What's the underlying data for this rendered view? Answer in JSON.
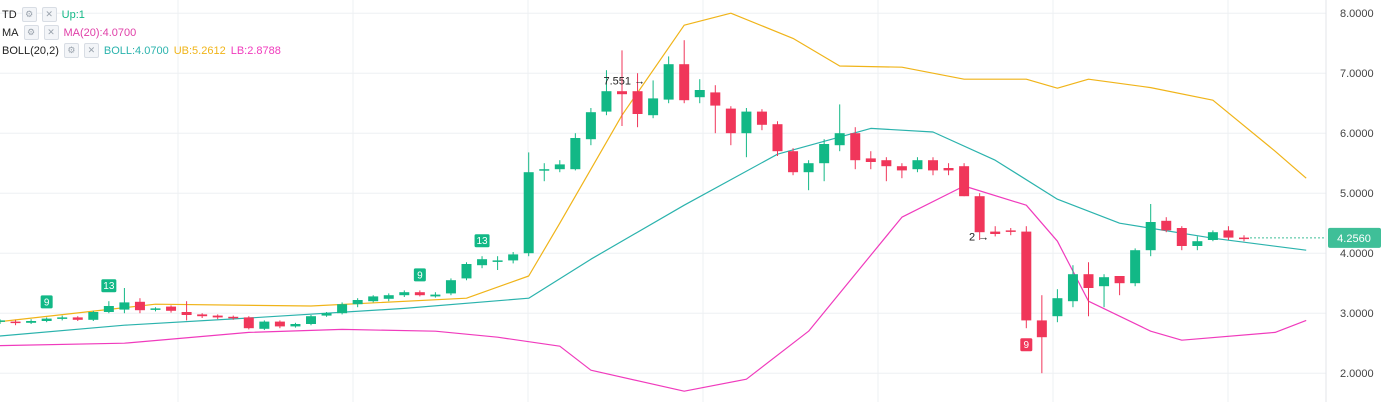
{
  "indicators": {
    "td": {
      "name": "TD",
      "value": "Up:1"
    },
    "ma": {
      "name": "MA",
      "value": "MA(20):4.0700"
    },
    "boll": {
      "name": "BOLL(20,2)",
      "mid": "BOLL:4.0700",
      "ub": "UB:5.2612",
      "lb": "LB:2.8788"
    },
    "button_icons": [
      "gear-icon",
      "close-icon"
    ]
  },
  "colors": {
    "up": "#12b886",
    "down": "#f0365a",
    "ub": "#f0b419",
    "mid": "#2bb3ad",
    "lb": "#f03bbd",
    "grid": "#eef0f3",
    "price_tag": "#3fbf98",
    "td_up": "#12b886",
    "td_down": "#f0365a"
  },
  "chart_data": {
    "type": "candlestick",
    "y_axis": {
      "ticks": [
        "8.0000",
        "7.0000",
        "6.0000",
        "5.0000",
        "4.0000",
        "3.0000",
        "2.0000"
      ],
      "range": [
        1.52,
        8.22
      ],
      "position": "right"
    },
    "current_price": "4.2560",
    "high_marker": {
      "label": "7.551",
      "index": 42
    },
    "low_marker": {
      "label": "2",
      "index": 64
    },
    "candles": [
      [
        2.86,
        2.88,
        2.82,
        2.9
      ],
      [
        2.86,
        2.84,
        2.8,
        2.89
      ],
      [
        2.84,
        2.87,
        2.82,
        2.9
      ],
      [
        2.87,
        2.91,
        2.85,
        2.93
      ],
      [
        2.92,
        2.93,
        2.88,
        2.96
      ],
      [
        2.93,
        2.89,
        2.87,
        2.95
      ],
      [
        2.89,
        3.02,
        2.87,
        3.04
      ],
      [
        3.02,
        3.12,
        3.0,
        3.2
      ],
      [
        3.06,
        3.18,
        3.0,
        3.42
      ],
      [
        3.19,
        3.05,
        3.0,
        3.25
      ],
      [
        3.06,
        3.08,
        3.03,
        3.1
      ],
      [
        3.11,
        3.04,
        3.01,
        3.13
      ],
      [
        3.02,
        2.97,
        2.88,
        3.2
      ],
      [
        2.98,
        2.95,
        2.92,
        3.0
      ],
      [
        2.96,
        2.93,
        2.9,
        2.98
      ],
      [
        2.94,
        2.92,
        2.89,
        2.96
      ],
      [
        2.93,
        2.75,
        2.73,
        2.95
      ],
      [
        2.74,
        2.86,
        2.72,
        2.88
      ],
      [
        2.86,
        2.78,
        2.75,
        2.88
      ],
      [
        2.78,
        2.82,
        2.76,
        2.84
      ],
      [
        2.82,
        2.95,
        2.8,
        2.97
      ],
      [
        2.96,
        3.0,
        2.94,
        3.02
      ],
      [
        3.0,
        3.15,
        2.98,
        3.18
      ],
      [
        3.15,
        3.22,
        3.1,
        3.25
      ],
      [
        3.2,
        3.28,
        3.18,
        3.3
      ],
      [
        3.24,
        3.3,
        3.2,
        3.33
      ],
      [
        3.3,
        3.35,
        3.27,
        3.38
      ],
      [
        3.35,
        3.3,
        3.28,
        3.38
      ],
      [
        3.28,
        3.31,
        3.26,
        3.35
      ],
      [
        3.33,
        3.55,
        3.3,
        3.58
      ],
      [
        3.58,
        3.82,
        3.55,
        3.85
      ],
      [
        3.8,
        3.9,
        3.75,
        3.95
      ],
      [
        3.86,
        3.88,
        3.72,
        3.95
      ],
      [
        3.88,
        3.98,
        3.83,
        4.02
      ],
      [
        4.0,
        5.35,
        3.95,
        5.68
      ],
      [
        5.38,
        5.4,
        5.2,
        5.5
      ],
      [
        5.4,
        5.48,
        5.35,
        5.55
      ],
      [
        5.4,
        5.92,
        5.38,
        6.0
      ],
      [
        5.9,
        6.35,
        5.8,
        6.42
      ],
      [
        6.36,
        6.7,
        6.3,
        7.05
      ],
      [
        6.7,
        6.65,
        6.12,
        7.38
      ],
      [
        6.7,
        6.32,
        6.1,
        7.0
      ],
      [
        6.3,
        6.58,
        6.25,
        6.88
      ],
      [
        6.56,
        7.15,
        6.5,
        7.28
      ],
      [
        7.15,
        6.55,
        6.5,
        7.55
      ],
      [
        6.6,
        6.72,
        6.5,
        6.9
      ],
      [
        6.68,
        6.46,
        6.0,
        6.8
      ],
      [
        6.41,
        6.0,
        5.8,
        6.45
      ],
      [
        6.0,
        6.36,
        5.6,
        6.42
      ],
      [
        6.36,
        6.14,
        6.05,
        6.4
      ],
      [
        6.15,
        5.7,
        5.62,
        6.2
      ],
      [
        5.7,
        5.35,
        5.3,
        5.75
      ],
      [
        5.35,
        5.5,
        5.05,
        5.55
      ],
      [
        5.5,
        5.82,
        5.2,
        5.9
      ],
      [
        5.8,
        6.0,
        5.7,
        6.48
      ],
      [
        6.0,
        5.55,
        5.4,
        6.1
      ],
      [
        5.58,
        5.52,
        5.4,
        5.7
      ],
      [
        5.55,
        5.45,
        5.2,
        5.6
      ],
      [
        5.45,
        5.38,
        5.25,
        5.5
      ],
      [
        5.4,
        5.55,
        5.35,
        5.6
      ],
      [
        5.55,
        5.38,
        5.3,
        5.6
      ],
      [
        5.42,
        5.38,
        5.3,
        5.5
      ],
      [
        5.45,
        4.95,
        4.95,
        5.5
      ],
      [
        4.95,
        4.35,
        4.22,
        5.0
      ],
      [
        4.36,
        4.32,
        4.28,
        4.45
      ],
      [
        4.38,
        4.36,
        4.3,
        4.42
      ],
      [
        4.36,
        2.88,
        2.75,
        4.45
      ],
      [
        2.88,
        2.6,
        2.0,
        3.3
      ],
      [
        2.95,
        3.25,
        2.85,
        3.4
      ],
      [
        3.2,
        3.65,
        3.1,
        3.8
      ],
      [
        3.65,
        3.42,
        2.95,
        3.85
      ],
      [
        3.45,
        3.6,
        3.1,
        3.65
      ],
      [
        3.62,
        3.5,
        3.3,
        3.62
      ],
      [
        3.5,
        4.05,
        3.45,
        4.08
      ],
      [
        4.05,
        4.52,
        3.95,
        4.82
      ],
      [
        4.54,
        4.38,
        4.35,
        4.6
      ],
      [
        4.42,
        4.12,
        4.05,
        4.45
      ],
      [
        4.12,
        4.2,
        4.05,
        4.28
      ],
      [
        4.22,
        4.35,
        4.2,
        4.38
      ],
      [
        4.38,
        4.26,
        4.22,
        4.45
      ],
      [
        4.26,
        4.25,
        4.2,
        4.3
      ]
    ],
    "bands": {
      "ub": [
        [
          0,
          2.86
        ],
        [
          10,
          3.15
        ],
        [
          20,
          3.12
        ],
        [
          30,
          3.25
        ],
        [
          34,
          3.62
        ],
        [
          36,
          4.5
        ],
        [
          40,
          6.3
        ],
        [
          44,
          7.8
        ],
        [
          47,
          8.0
        ],
        [
          51,
          7.58
        ],
        [
          54,
          7.12
        ],
        [
          58,
          7.1
        ],
        [
          62,
          6.9
        ],
        [
          66,
          6.9
        ],
        [
          68,
          6.75
        ],
        [
          70,
          6.9
        ],
        [
          74,
          6.76
        ],
        [
          78,
          6.55
        ],
        [
          82,
          5.7
        ],
        [
          84,
          5.25
        ]
      ],
      "mid": [
        [
          0,
          2.62
        ],
        [
          8,
          2.8
        ],
        [
          16,
          2.92
        ],
        [
          26,
          3.08
        ],
        [
          34,
          3.25
        ],
        [
          38,
          3.9
        ],
        [
          44,
          4.8
        ],
        [
          50,
          5.65
        ],
        [
          56,
          6.08
        ],
        [
          60,
          6.02
        ],
        [
          64,
          5.55
        ],
        [
          68,
          4.9
        ],
        [
          72,
          4.5
        ],
        [
          78,
          4.25
        ],
        [
          84,
          4.05
        ]
      ],
      "lb": [
        [
          0,
          2.46
        ],
        [
          8,
          2.5
        ],
        [
          16,
          2.68
        ],
        [
          22,
          2.73
        ],
        [
          28,
          2.7
        ],
        [
          32,
          2.6
        ],
        [
          36,
          2.45
        ],
        [
          38,
          2.05
        ],
        [
          44,
          1.7
        ],
        [
          48,
          1.9
        ],
        [
          52,
          2.7
        ],
        [
          58,
          4.6
        ],
        [
          62,
          5.12
        ],
        [
          66,
          4.8
        ],
        [
          68,
          4.2
        ],
        [
          70,
          3.2
        ],
        [
          74,
          2.7
        ],
        [
          76,
          2.55
        ],
        [
          82,
          2.68
        ],
        [
          84,
          2.88
        ]
      ]
    },
    "td_signals": [
      {
        "index": 3,
        "label": "9",
        "kind": "up"
      },
      {
        "index": 7,
        "label": "13",
        "kind": "up"
      },
      {
        "index": 27,
        "label": "9",
        "kind": "up"
      },
      {
        "index": 31,
        "label": "13",
        "kind": "up"
      },
      {
        "index": 66,
        "label": "9",
        "kind": "down"
      }
    ]
  }
}
